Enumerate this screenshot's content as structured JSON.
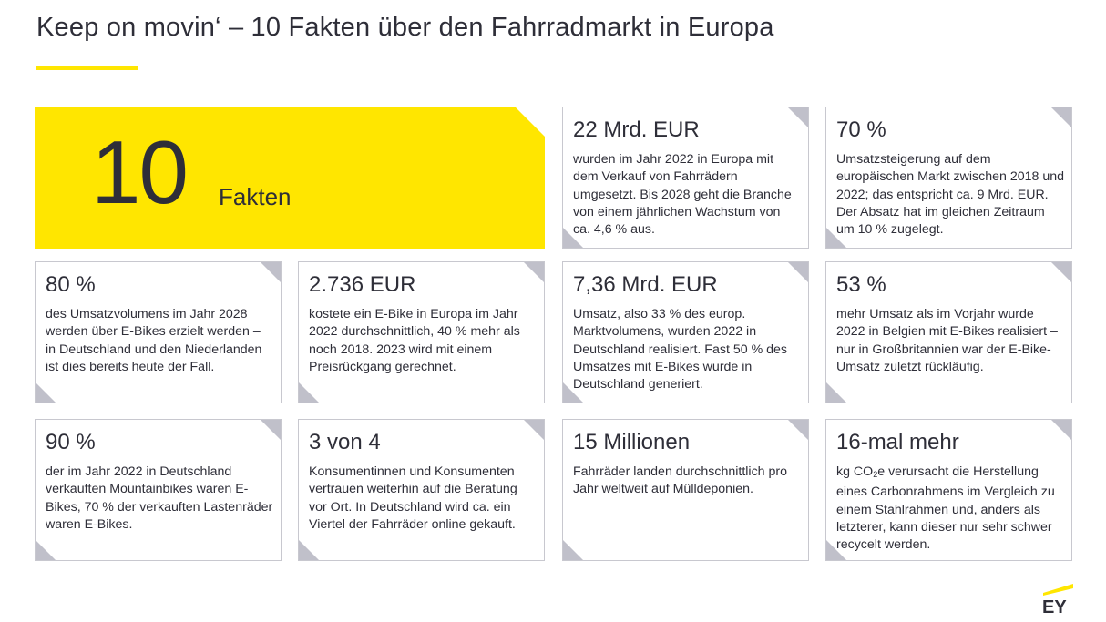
{
  "title": "Keep on movin‘ – 10 Fakten über den Fahrradmarkt in Europa",
  "colors": {
    "accent": "#ffe600",
    "text": "#2e2e38",
    "card_border": "#c8c8cf",
    "corner": "#c0c0ca"
  },
  "hero": {
    "number": "10",
    "label": "Fakten"
  },
  "facts": [
    {
      "headline": "22 Mrd. EUR",
      "text": "wurden im Jahr 2022 in Europa mit dem Verkauf von Fahrrädern umgesetzt. Bis 2028 geht die Branche von einem jährlichen Wachstum von ca. 4,6 % aus."
    },
    {
      "headline": "70 %",
      "text": "Umsatzsteigerung auf dem europäischen Markt zwischen 2018 und 2022; das entspricht ca. 9 Mrd. EUR. Der Absatz hat im gleichen Zeitraum um 10 % zugelegt."
    },
    {
      "headline": "80 %",
      "text": "des Umsatzvolumens im Jahr 2028 werden über E-Bikes erzielt werden – in Deutschland und den Niederlanden ist dies bereits heute der Fall."
    },
    {
      "headline": "2.736 EUR",
      "text": "kostete ein E-Bike in Europa im Jahr 2022 durchschnittlich, 40 % mehr als noch 2018. 2023 wird mit einem Preisrückgang gerechnet."
    },
    {
      "headline": "7,36 Mrd. EUR",
      "text": "Umsatz, also 33 % des europ. Marktvolumens, wurden 2022 in Deutschland realisiert. Fast 50 % des Umsatzes mit E-Bikes wurde in Deutschland generiert."
    },
    {
      "headline": "53 %",
      "text": "mehr Umsatz als im Vorjahr wurde 2022 in Belgien mit E-Bikes realisiert – nur in Großbritannien war der E-Bike-Umsatz zuletzt rückläufig."
    },
    {
      "headline": "90 %",
      "text": "der im Jahr 2022 in Deutschland verkauften Mountainbikes waren E-Bikes, 70 % der verkauften Lastenräder waren E-Bikes."
    },
    {
      "headline": "3 von 4",
      "text": "Konsumentinnen und Konsumenten vertrauen weiterhin auf die Beratung vor Ort. In Deutschland wird ca. ein Viertel der Fahrräder online gekauft."
    },
    {
      "headline": "15 Millionen",
      "text": "Fahrräder landen durchschnittlich pro Jahr weltweit auf Mülldeponien."
    },
    {
      "headline": "16-mal mehr",
      "text_prefix": "kg CO",
      "text_sub": "2",
      "text_suffix": "e verursacht die Herstellung eines Carbonrahmens im Vergleich zu einem Stahlrahmen und, anders als letzterer, kann dieser nur sehr schwer recycelt werden."
    }
  ],
  "logo": {
    "text": "EY",
    "icon": "ey-logo-icon"
  }
}
